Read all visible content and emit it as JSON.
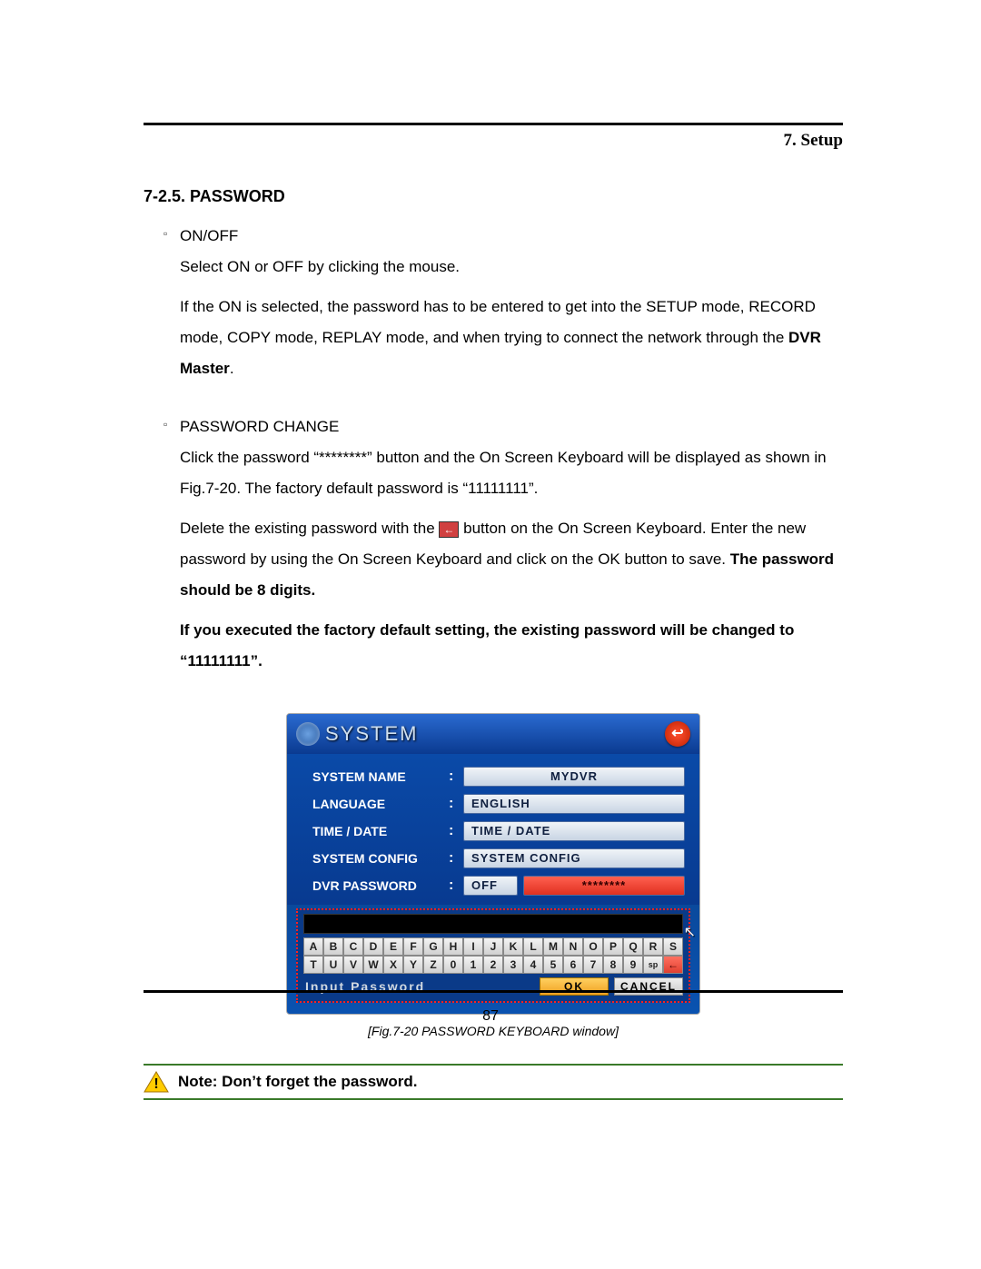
{
  "chapter": "7. Setup",
  "section_title": "7-2.5. PASSWORD",
  "bullet1_title": "ON/OFF",
  "bullet1_line1": "Select ON or OFF by clicking the mouse.",
  "bullet1_line2": "If the ON is selected, the password has to be entered to get into the SETUP mode, RECORD mode, COPY mode, REPLAY mode, and when trying to connect the network through the ",
  "dvr_master": "DVR Master",
  "period1": ".",
  "bullet2_title": "PASSWORD CHANGE",
  "bullet2_line1": "Click the password “********” button and the On Screen Keyboard will be displayed as shown in Fig.7-20. The factory default password is “11111111”.",
  "bullet2_line2a": "Delete the existing password with the ",
  "backspace_glyph": "←",
  "bullet2_line2b": " button on the On Screen Keyboard. Enter the new password by using the On Screen Keyboard and click on the OK button to save. ",
  "bold_tail": "The password should be 8 digits.",
  "bold_para": "If you executed the factory default setting, the existing password will be changed to “11111111”.",
  "sys": {
    "title": "SYSTEM",
    "back_glyph": "↩",
    "rows": {
      "name_label": "SYSTEM NAME",
      "name_value": "MYDVR",
      "lang_label": "LANGUAGE",
      "lang_value": "ENGLISH",
      "time_label": "TIME / DATE",
      "time_value": "TIME / DATE",
      "cfg_label": "SYSTEM CONFIG",
      "cfg_value": "SYSTEM CONFIG",
      "pwd_label": "DVR PASSWORD",
      "pwd_toggle": "OFF",
      "pwd_mask": "********"
    },
    "kbd": {
      "row1": [
        "A",
        "B",
        "C",
        "D",
        "E",
        "F",
        "G",
        "H",
        "I",
        "J",
        "K",
        "L",
        "M",
        "N",
        "O",
        "P",
        "Q",
        "R",
        "S"
      ],
      "row2": [
        "T",
        "U",
        "V",
        "W",
        "X",
        "Y",
        "Z",
        "0",
        "1",
        "2",
        "3",
        "4",
        "5",
        "6",
        "7",
        "8",
        "9",
        "sp",
        "←"
      ],
      "prompt": "Input Password",
      "ok": "OK",
      "cancel": "CANCEL"
    }
  },
  "fig_caption": "[Fig.7-20 PASSWORD KEYBOARD window]",
  "note_prefix": "Note",
  "note_colon": ": ",
  "note_text": "Don’t forget the password.",
  "page_number": "87"
}
